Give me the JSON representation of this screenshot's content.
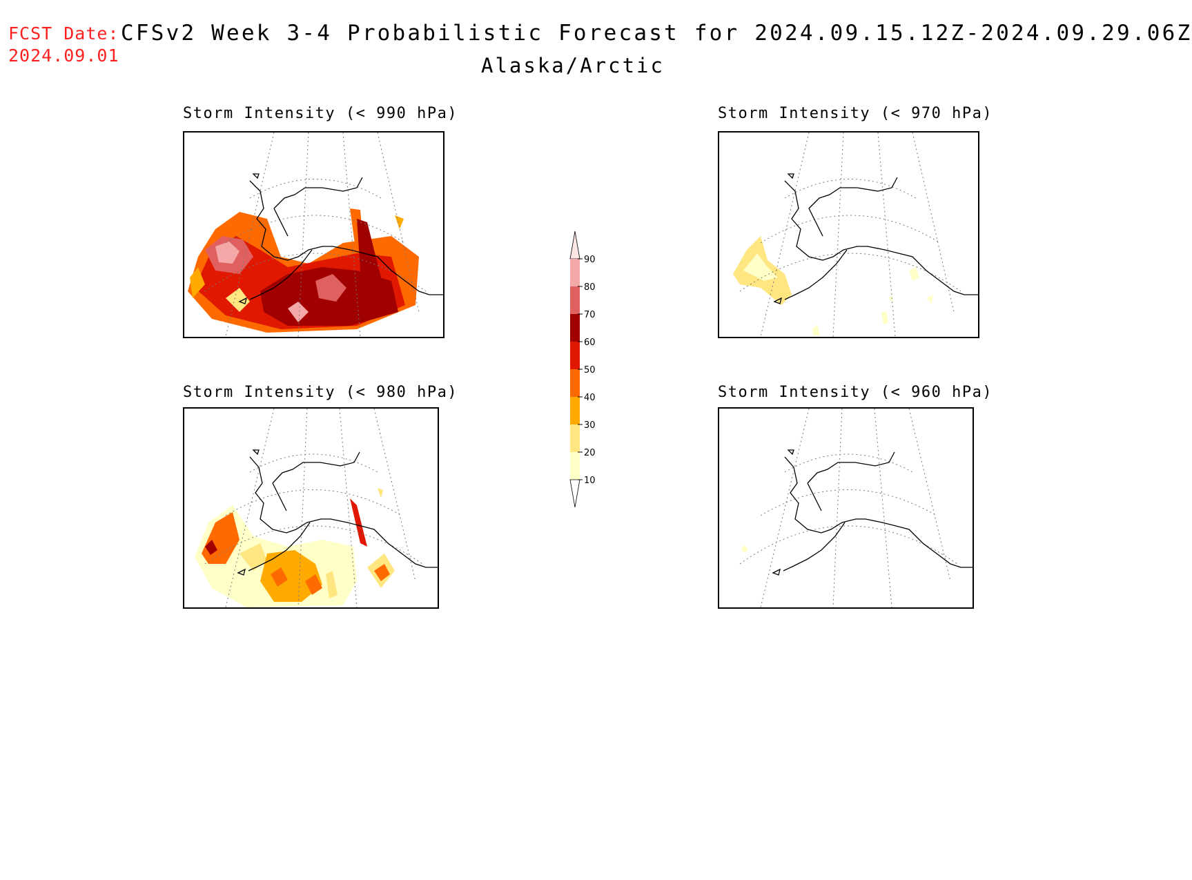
{
  "header": {
    "fcst_label": "FCST Date:",
    "fcst_date": "2024.09.01",
    "title": "CFSv2 Week 3-4 Probabilistic Forecast for 2024.09.15.12Z-2024.09.29.06Z",
    "subtitle": "Alaska/Arctic"
  },
  "panels": [
    {
      "title": "Storm Intensity (< 990 hPa)",
      "threshold_hpa": 990,
      "coverage": "high"
    },
    {
      "title": "Storm Intensity (< 970 hPa)",
      "threshold_hpa": 970,
      "coverage": "low"
    },
    {
      "title": "Storm Intensity (< 980 hPa)",
      "threshold_hpa": 980,
      "coverage": "medium"
    },
    {
      "title": "Storm Intensity (< 960 hPa)",
      "threshold_hpa": 960,
      "coverage": "minimal"
    }
  ],
  "colorbar": {
    "ticks": [
      "10",
      "20",
      "30",
      "40",
      "50",
      "60",
      "70",
      "80",
      "90"
    ],
    "colors": [
      "#ffffc8",
      "#ffe680",
      "#ffaa00",
      "#ff6a00",
      "#e01800",
      "#a00000",
      "#e06060",
      "#f4a8a8",
      "#fde6e6"
    ]
  }
}
